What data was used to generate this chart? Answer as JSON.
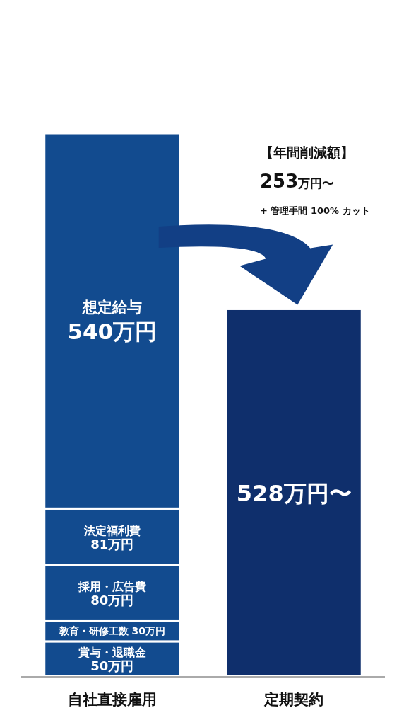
{
  "chart_data": {
    "type": "bar",
    "stacked": true,
    "categories": [
      "自社直接雇用",
      "定期契約"
    ],
    "series": [
      {
        "name": "賞与・退職金",
        "color": "#124b8f",
        "values": [
          50,
          null
        ],
        "value_labels": [
          "50万円",
          null
        ]
      },
      {
        "name": "教育・研修工数",
        "color": "#124b8f",
        "values": [
          30,
          null
        ],
        "value_labels": [
          "30万円",
          null
        ]
      },
      {
        "name": "採用・広告費",
        "color": "#124b8f",
        "values": [
          80,
          null
        ],
        "value_labels": [
          "80万円",
          null
        ]
      },
      {
        "name": "法定福利費",
        "color": "#124b8f",
        "values": [
          81,
          null
        ],
        "value_labels": [
          "81万円",
          null
        ]
      },
      {
        "name": "想定給与",
        "color": "#124b8f",
        "values": [
          540,
          null
        ],
        "value_labels": [
          "540万円",
          null
        ]
      },
      {
        "color": "#0f2f6c",
        "values": [
          null,
          528
        ],
        "value_labels": [
          null,
          "528万円〜"
        ]
      }
    ],
    "annotations": [
      "【年間削減額】",
      "253万円〜",
      "+ 管理手間 100% カット"
    ]
  }
}
